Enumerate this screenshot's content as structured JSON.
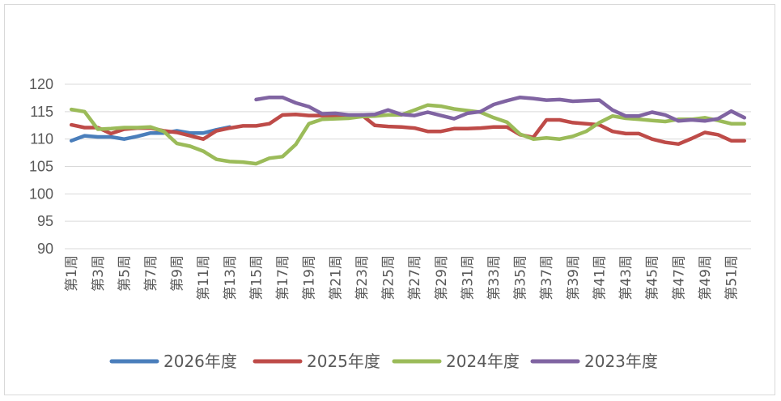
{
  "chart_data": {
    "type": "line",
    "title": "",
    "xlabel": "",
    "ylabel": "",
    "ylim": [
      90,
      120
    ],
    "yticks": [
      90,
      95,
      100,
      105,
      110,
      115,
      120
    ],
    "grid": true,
    "legend_position": "bottom",
    "categories": [
      "第1周",
      "第2周",
      "第3周",
      "第4周",
      "第5周",
      "第6周",
      "第7周",
      "第8周",
      "第9周",
      "第10周",
      "第11周",
      "第12周",
      "第13周",
      "第14周",
      "第15周",
      "第16周",
      "第17周",
      "第18周",
      "第19周",
      "第20周",
      "第21周",
      "第22周",
      "第23周",
      "第24周",
      "第25周",
      "第26周",
      "第27周",
      "第28周",
      "第29周",
      "第30周",
      "第31周",
      "第32周",
      "第33周",
      "第34周",
      "第35周",
      "第36周",
      "第37周",
      "第38周",
      "第39周",
      "第40周",
      "第41周",
      "第42周",
      "第43周",
      "第44周",
      "第45周",
      "第46周",
      "第47周",
      "第48周",
      "第49周",
      "第50周",
      "第51周",
      "第52周"
    ],
    "tick_labels": [
      "第1周",
      "第3周",
      "第5周",
      "第7周",
      "第9周",
      "第11周",
      "第13周",
      "第15周",
      "第17周",
      "第19周",
      "第21周",
      "第23周",
      "第25周",
      "第27周",
      "第29周",
      "第31周",
      "第33周",
      "第35周",
      "第37周",
      "第39周",
      "第41周",
      "第43周",
      "第45周",
      "第47周",
      "第49周",
      "第51周"
    ],
    "series": [
      {
        "name": "2026年度",
        "color": "#4a7ebb",
        "values": [
          109.7,
          110.6,
          110.4,
          110.4,
          110.0,
          110.5,
          111.1,
          111.1,
          111.5,
          111.1,
          111.1,
          111.7,
          112.2,
          null,
          null,
          null,
          null,
          null,
          null,
          null,
          null,
          null,
          null,
          null,
          null,
          null,
          null,
          null,
          null,
          null,
          null,
          null,
          null,
          null,
          null,
          null,
          null,
          null,
          null,
          null,
          null,
          null,
          null,
          null,
          null,
          null,
          null,
          null,
          null,
          null,
          null,
          null
        ]
      },
      {
        "name": "2025年度",
        "color": "#be4b48",
        "values": [
          112.6,
          112.1,
          112.1,
          111.0,
          111.8,
          112.0,
          112.0,
          111.5,
          111.2,
          110.6,
          110.0,
          111.5,
          112.0,
          112.4,
          112.4,
          112.8,
          114.4,
          114.5,
          114.3,
          114.3,
          114.3,
          114.1,
          114.4,
          112.5,
          112.3,
          112.2,
          112.0,
          111.4,
          111.4,
          111.9,
          111.9,
          112.0,
          112.2,
          112.2,
          110.8,
          110.3,
          113.5,
          113.5,
          113.0,
          112.8,
          112.6,
          111.4,
          111.0,
          111.0,
          110.0,
          109.4,
          109.1,
          110.1,
          111.2,
          110.8,
          109.7,
          109.7
        ]
      },
      {
        "name": "2024年度",
        "color": "#9bbb59",
        "values": [
          115.4,
          115.0,
          111.8,
          111.9,
          112.1,
          112.1,
          112.2,
          111.4,
          109.2,
          108.7,
          107.8,
          106.3,
          105.9,
          105.8,
          105.5,
          106.5,
          106.8,
          109.0,
          112.8,
          113.6,
          113.7,
          113.8,
          114.1,
          114.2,
          114.4,
          114.4,
          115.3,
          116.2,
          116.0,
          115.5,
          115.2,
          114.9,
          113.9,
          113.1,
          110.9,
          110.0,
          110.2,
          110.0,
          110.5,
          111.4,
          113.0,
          114.2,
          113.8,
          113.6,
          113.4,
          113.2,
          113.6,
          113.6,
          113.9,
          113.4,
          112.8,
          112.8
        ]
      },
      {
        "name": "2023年度",
        "color": "#8064a2",
        "values": [
          null,
          null,
          null,
          null,
          null,
          null,
          null,
          null,
          null,
          null,
          null,
          null,
          null,
          null,
          117.2,
          117.6,
          117.6,
          116.6,
          115.9,
          114.6,
          114.7,
          114.4,
          114.4,
          114.5,
          115.3,
          114.5,
          114.3,
          114.9,
          114.3,
          113.7,
          114.7,
          115.0,
          116.3,
          117.0,
          117.6,
          117.4,
          117.1,
          117.2,
          116.9,
          117.0,
          117.1,
          115.3,
          114.2,
          114.2,
          114.9,
          114.4,
          113.3,
          113.5,
          113.3,
          113.7,
          115.1,
          113.9
        ]
      }
    ]
  }
}
